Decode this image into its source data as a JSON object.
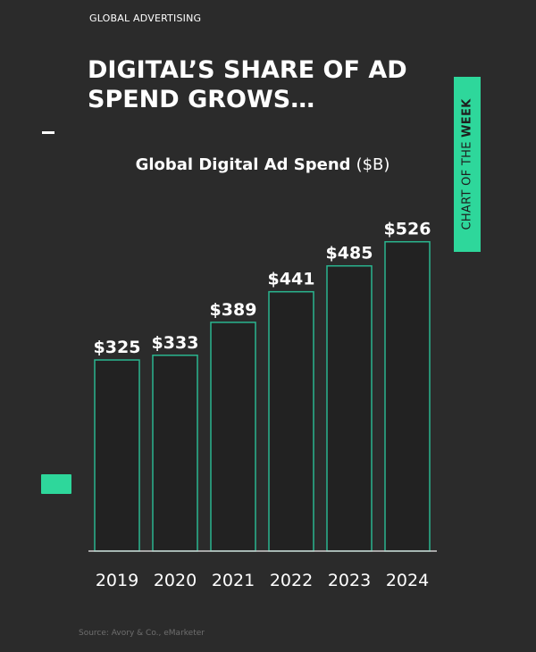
{
  "header": {
    "eyebrow": "GLOBAL ADVERTISING",
    "headline": "DIGITAL’S SHARE OF AD SPEND GROWS…"
  },
  "badge": {
    "prefix": "CHART OF THE ",
    "emphasis": "WEEK"
  },
  "source": "Source: Avory & Co., eMarketer",
  "colors": {
    "accent": "#2ed79b",
    "bar_outline": "#2ab58f",
    "bar_fill": "#222222",
    "background": "#2b2b2b"
  },
  "chart_data": {
    "type": "bar",
    "title": "Global Digital Ad Spend",
    "title_unit": "($B)",
    "categories": [
      "2019",
      "2020",
      "2021",
      "2022",
      "2023",
      "2024"
    ],
    "values": [
      325,
      333,
      389,
      441,
      485,
      526
    ],
    "value_labels": [
      "$325",
      "$333",
      "$389",
      "$441",
      "$485",
      "$526"
    ],
    "ylim": [
      0,
      600
    ],
    "grid": false,
    "legend": "none"
  }
}
